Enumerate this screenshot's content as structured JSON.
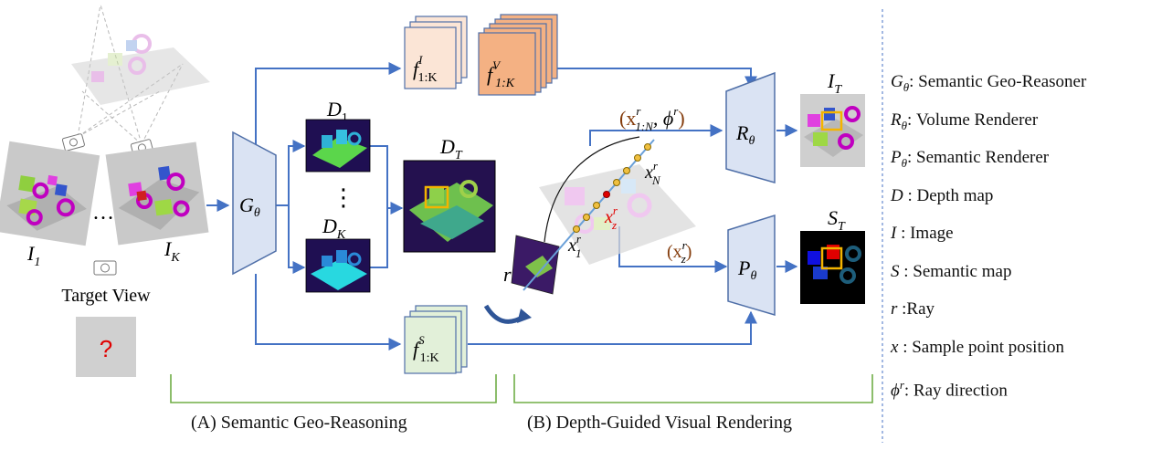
{
  "figure": {
    "inputs": {
      "first_view": "I",
      "first_view_sub": "1",
      "ellipsis": "…",
      "last_view": "I",
      "last_view_sub": "K",
      "target_view_label": "Target View",
      "unknown_mark": "?"
    },
    "reasoner": {
      "symbol": "G",
      "sub": "θ"
    },
    "features": {
      "image_feat": "f",
      "image_feat_sup": "I",
      "image_feat_sub": "1:K",
      "volume_feat": "f",
      "volume_feat_sup": "V",
      "volume_feat_sub": "1:K",
      "semantic_feat": "f",
      "semantic_feat_sup": "S",
      "semantic_feat_sub": "1:K"
    },
    "depth": {
      "d1": "D",
      "d1_sub": "1",
      "vdots": "⋮",
      "dk": "D",
      "dk_sub": "K",
      "dt": "D",
      "dt_sub": "T"
    },
    "ray": {
      "ray_label": "r",
      "points_label": "(x",
      "points_sup": "r",
      "points_sub": "1:N",
      "points_mid": ", ϕ",
      "points_phi_sup": "r",
      "points_close": ")",
      "xN": "x",
      "xN_sup": "r",
      "xN_sub": "N",
      "xz": "x",
      "xz_sup": "r",
      "xz_sub": "z",
      "x1": "x",
      "x1_sup": "r",
      "x1_sub": "1",
      "xz_paren_open": "(x",
      "xz_paren_sup": "r",
      "xz_paren_sub": "z",
      "xz_paren_close": ")"
    },
    "renderers": {
      "volume": "R",
      "volume_sub": "θ",
      "semantic": "P",
      "semantic_sub": "θ"
    },
    "outputs": {
      "image": "I",
      "image_sub": "T",
      "semantic": "S",
      "semantic_sub": "T"
    },
    "captions": {
      "a": "(A) Semantic Geo-Reasoning",
      "b": "(B) Depth-Guided Visual Rendering"
    },
    "colors": {
      "arrow": "#4472c4",
      "trapezoid_fill": "#dae3f3",
      "trapezoid_stroke": "#4f6fa8",
      "bracket": "#70ad47",
      "image_feat_fill": "#fbe5d6",
      "volume_feat_fill": "#f4b183",
      "semantic_feat_fill": "#e2f0d9",
      "highlight": "#f4b400",
      "point_red": "#e00000"
    }
  },
  "legend": [
    {
      "sym": "G",
      "sub": "θ",
      "text": ": Semantic Geo-Reasoner"
    },
    {
      "sym": "R",
      "sub": "θ",
      "text": ": Volume Renderer"
    },
    {
      "sym": "P",
      "sub": "θ",
      "text": ": Semantic Renderer"
    },
    {
      "sym": "D",
      "sub": "",
      "text": " : Depth map"
    },
    {
      "sym": "I",
      "sub": "",
      "text": " : Image"
    },
    {
      "sym": "S",
      "sub": "",
      "text": " : Semantic map"
    },
    {
      "sym": "r",
      "sub": "",
      "text": " :Ray"
    },
    {
      "sym": "x",
      "sub": "",
      "text": " : Sample point position"
    },
    {
      "sym": "ϕ",
      "sup": "r",
      "text": ": Ray direction"
    }
  ]
}
